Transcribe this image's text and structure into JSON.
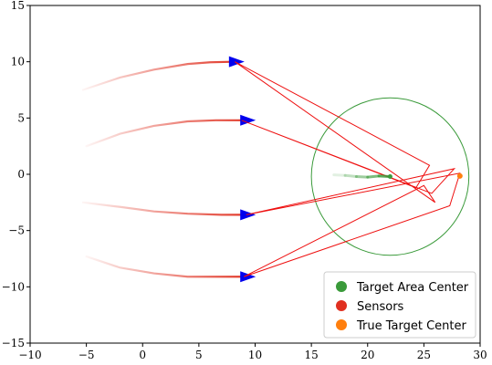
{
  "chart_data": {
    "type": "scatter",
    "title": "",
    "xlabel": "",
    "ylabel": "",
    "xlim": [
      -10,
      30
    ],
    "ylim": [
      -15,
      15
    ],
    "xticks": [
      -10,
      -5,
      0,
      5,
      10,
      15,
      20,
      25,
      30
    ],
    "yticks": [
      -15,
      -10,
      -5,
      0,
      5,
      10,
      15
    ],
    "grid": false,
    "legend_position": "lower-right",
    "colors": {
      "sensor_trail": "#e03020",
      "sensor_arrow": "#0000ee",
      "beam_lines": "#ee1010",
      "target_area": "#3a9a3a",
      "true_target": "#ff7f0e"
    },
    "legend": [
      {
        "label": "Target Area Center",
        "color": "#3a9a3a"
      },
      {
        "label": " Sensors",
        "color": "#e03020"
      },
      {
        "label": "True Target Center",
        "color": "#ff7f0e"
      }
    ],
    "sensor_trails": [
      {
        "x": [
          -5.3,
          -2,
          1,
          4,
          6,
          8
        ],
        "y": [
          7.5,
          8.6,
          9.3,
          9.8,
          9.95,
          10.0
        ],
        "head": [
          8,
          10
        ]
      },
      {
        "x": [
          -5,
          -2,
          1,
          4,
          6.5,
          9
        ],
        "y": [
          2.5,
          3.6,
          4.3,
          4.7,
          4.8,
          4.8
        ],
        "head": [
          9,
          4.8
        ]
      },
      {
        "x": [
          -5.3,
          -2,
          1,
          4,
          7,
          9
        ],
        "y": [
          -2.5,
          -2.9,
          -3.3,
          -3.5,
          -3.6,
          -3.6
        ],
        "head": [
          9,
          -3.6
        ]
      },
      {
        "x": [
          -5,
          -2,
          1,
          4,
          6.5,
          9
        ],
        "y": [
          -7.3,
          -8.3,
          -8.8,
          -9.1,
          -9.1,
          -9.1
        ],
        "head": [
          9,
          -9.1
        ]
      }
    ],
    "beam_path": {
      "x": [
        8.2,
        25.5,
        24.3,
        8.8,
        25.7,
        27.7,
        9.2,
        28.2,
        27.3,
        9.0,
        25.0,
        26.0,
        8.2
      ],
      "y": [
        10.0,
        0.8,
        -1.2,
        4.8,
        -1.7,
        0.5,
        -3.6,
        0.1,
        -2.8,
        -9.1,
        -1.0,
        -2.5,
        10.0
      ]
    },
    "target_area_track": {
      "x": [
        17.0,
        18.0,
        19.0,
        20.0,
        21.0,
        22.0
      ],
      "y": [
        -0.05,
        -0.1,
        -0.2,
        -0.25,
        -0.15,
        -0.2
      ]
    },
    "target_area_center": [
      22.0,
      -0.2
    ],
    "target_area_radius": 7.0,
    "true_target_center": [
      28.2,
      -0.15
    ]
  }
}
